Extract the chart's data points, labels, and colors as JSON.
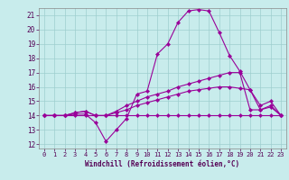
{
  "xlabel": "Windchill (Refroidissement éolien,°C)",
  "xlim": [
    -0.5,
    23.5
  ],
  "ylim": [
    11.7,
    21.5
  ],
  "yticks": [
    12,
    13,
    14,
    15,
    16,
    17,
    18,
    19,
    20,
    21
  ],
  "xticks": [
    0,
    1,
    2,
    3,
    4,
    5,
    6,
    7,
    8,
    9,
    10,
    11,
    12,
    13,
    14,
    15,
    16,
    17,
    18,
    19,
    20,
    21,
    22,
    23
  ],
  "bg_color": "#c8ecec",
  "grid_color": "#9ecece",
  "line_color": "#990099",
  "lines": [
    [
      14.0,
      14.0,
      14.0,
      14.1,
      14.1,
      13.5,
      12.2,
      13.0,
      13.8,
      15.5,
      15.7,
      18.3,
      19.0,
      20.5,
      21.3,
      21.4,
      21.3,
      19.8,
      18.2,
      17.1,
      15.8,
      14.7,
      15.0,
      14.0
    ],
    [
      14.0,
      14.0,
      14.0,
      14.0,
      14.0,
      14.0,
      14.0,
      14.0,
      14.0,
      14.0,
      14.0,
      14.0,
      14.0,
      14.0,
      14.0,
      14.0,
      14.0,
      14.0,
      14.0,
      14.0,
      14.0,
      14.0,
      14.0,
      14.0
    ],
    [
      14.0,
      14.0,
      14.0,
      14.2,
      14.3,
      14.0,
      14.0,
      14.3,
      14.7,
      15.0,
      15.3,
      15.5,
      15.7,
      16.0,
      16.2,
      16.4,
      16.6,
      16.8,
      17.0,
      17.0,
      14.4,
      14.4,
      14.7,
      14.0
    ],
    [
      14.0,
      14.0,
      14.0,
      14.2,
      14.3,
      14.0,
      14.0,
      14.2,
      14.4,
      14.7,
      14.9,
      15.1,
      15.3,
      15.5,
      15.7,
      15.8,
      15.9,
      16.0,
      16.0,
      15.9,
      15.8,
      14.4,
      14.6,
      14.0
    ]
  ]
}
